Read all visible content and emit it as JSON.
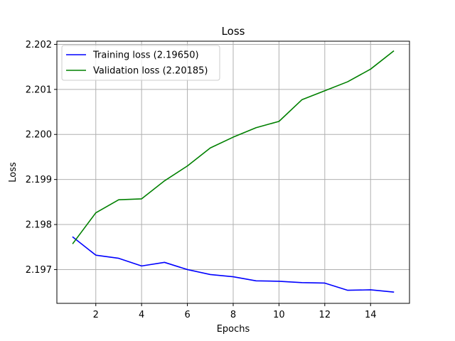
{
  "chart_data": {
    "type": "line",
    "title": "Loss",
    "xlabel": "Epochs",
    "ylabel": "Loss",
    "x": [
      1,
      2,
      3,
      4,
      5,
      6,
      7,
      8,
      9,
      10,
      11,
      12,
      13,
      14,
      15
    ],
    "xlim": [
      0.3,
      15.7
    ],
    "ylim": [
      2.19625,
      2.20207
    ],
    "x_ticks": [
      2,
      4,
      6,
      8,
      10,
      12,
      14
    ],
    "y_ticks": [
      2.197,
      2.198,
      2.199,
      2.2,
      2.201,
      2.202
    ],
    "x_tick_labels": [
      "2",
      "4",
      "6",
      "8",
      "10",
      "12",
      "14"
    ],
    "y_tick_labels": [
      "2.197",
      "2.198",
      "2.199",
      "2.200",
      "2.201",
      "2.202"
    ],
    "grid": true,
    "legend_position": "top-left",
    "series": [
      {
        "name": "Training loss (2.19650)",
        "color": "#0000ff",
        "values": [
          2.19772,
          2.19732,
          2.19725,
          2.19708,
          2.19716,
          2.197,
          2.19689,
          2.19684,
          2.19675,
          2.19674,
          2.19671,
          2.1967,
          2.19654,
          2.19655,
          2.1965
        ]
      },
      {
        "name": "Validation loss (2.20185)",
        "color": "#008000",
        "values": [
          2.19758,
          2.19826,
          2.19855,
          2.19857,
          2.19897,
          2.1993,
          2.1997,
          2.19994,
          2.20015,
          2.20029,
          2.20077,
          2.20097,
          2.20117,
          2.20145,
          2.20185
        ]
      }
    ]
  }
}
